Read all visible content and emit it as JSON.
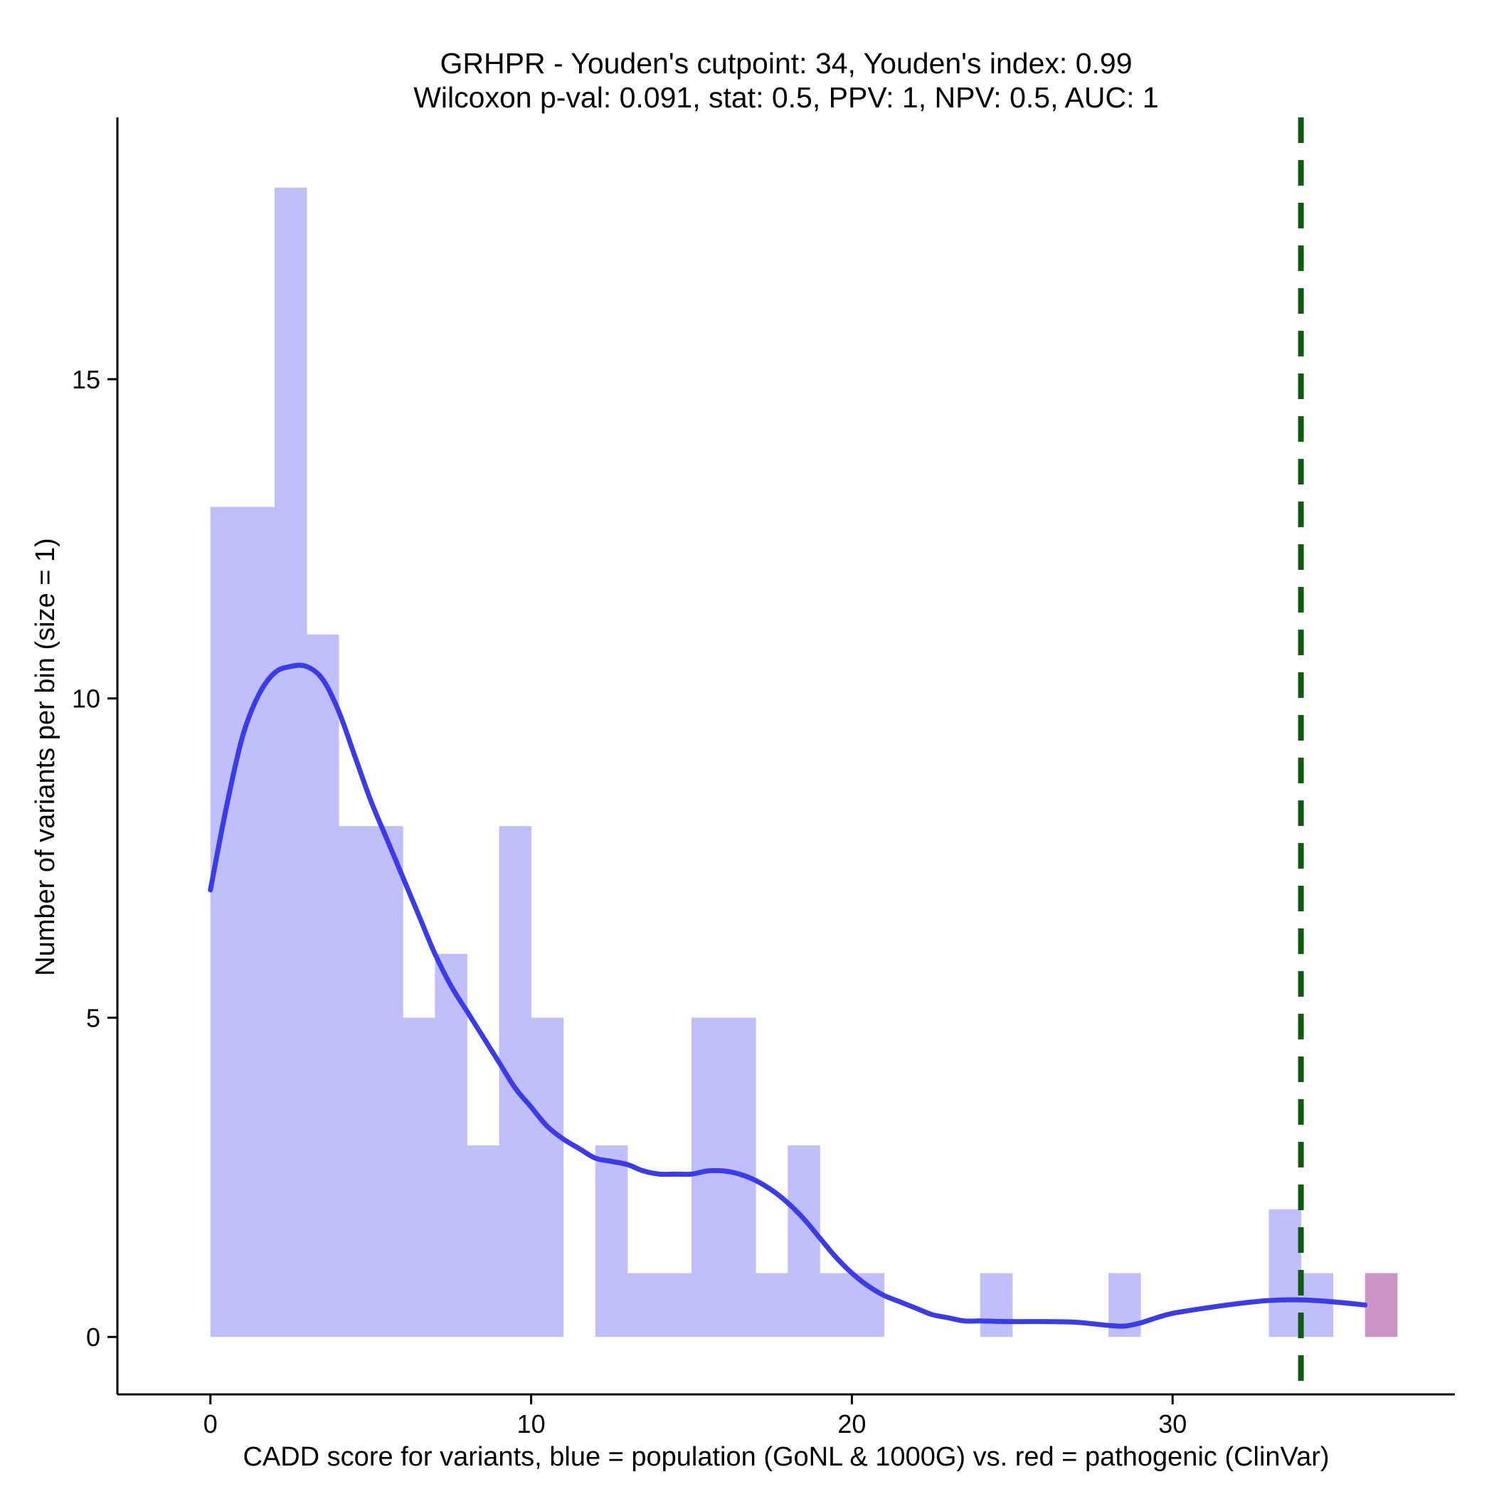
{
  "chart_data": {
    "type": "bar",
    "title_line1": "GRHPR - Youden's cutpoint: 34, Youden's index: 0.99",
    "title_line2": "Wilcoxon p-val: 0.091, stat: 0.5, PPV: 1, NPV: 0.5, AUC: 1",
    "xlabel": "CADD score for variants, blue = population (GoNL & 1000G) vs. red = pathogenic (ClinVar)",
    "ylabel": "Number of variants per bin (size = 1)",
    "bin_size": 1,
    "xlim": [
      -2.9,
      38.8
    ],
    "ylim": [
      -0.9,
      19.1
    ],
    "x_ticks": [
      0,
      10,
      20,
      30
    ],
    "y_ticks": [
      0,
      5,
      10,
      15
    ],
    "cutpoint": 34,
    "colors": {
      "population": "#bfbffc",
      "pathogenic": "#cc95c7",
      "density": "#3b3bee",
      "cutpoint": "#0e5a0e"
    },
    "series": [
      {
        "group": "population",
        "bins": [
          {
            "x0": 0,
            "count": 13
          },
          {
            "x0": 1,
            "count": 13
          },
          {
            "x0": 2,
            "count": 18
          },
          {
            "x0": 3,
            "count": 11
          },
          {
            "x0": 4,
            "count": 8
          },
          {
            "x0": 5,
            "count": 8
          },
          {
            "x0": 6,
            "count": 5
          },
          {
            "x0": 7,
            "count": 6
          },
          {
            "x0": 8,
            "count": 3
          },
          {
            "x0": 9,
            "count": 8
          },
          {
            "x0": 10,
            "count": 5
          },
          {
            "x0": 12,
            "count": 3
          },
          {
            "x0": 13,
            "count": 1
          },
          {
            "x0": 14,
            "count": 1
          },
          {
            "x0": 15,
            "count": 5
          },
          {
            "x0": 16,
            "count": 5
          },
          {
            "x0": 17,
            "count": 1
          },
          {
            "x0": 18,
            "count": 3
          },
          {
            "x0": 19,
            "count": 1
          },
          {
            "x0": 20,
            "count": 1
          },
          {
            "x0": 24,
            "count": 1
          },
          {
            "x0": 28,
            "count": 1
          },
          {
            "x0": 33,
            "count": 2
          },
          {
            "x0": 34,
            "count": 1
          }
        ]
      },
      {
        "group": "pathogenic",
        "bins": [
          {
            "x0": 36,
            "count": 1
          }
        ]
      }
    ],
    "density_curve": [
      [
        0,
        7.0
      ],
      [
        0.5,
        8.3
      ],
      [
        1.0,
        9.4
      ],
      [
        1.5,
        10.05
      ],
      [
        2.0,
        10.4
      ],
      [
        2.5,
        10.5
      ],
      [
        3.0,
        10.5
      ],
      [
        3.5,
        10.3
      ],
      [
        4.0,
        9.8
      ],
      [
        4.5,
        9.1
      ],
      [
        5.0,
        8.4
      ],
      [
        5.5,
        7.8
      ],
      [
        6.0,
        7.2
      ],
      [
        6.5,
        6.6
      ],
      [
        7.0,
        6.0
      ],
      [
        7.5,
        5.5
      ],
      [
        8.0,
        5.1
      ],
      [
        8.5,
        4.7
      ],
      [
        9.0,
        4.3
      ],
      [
        9.5,
        3.9
      ],
      [
        10.0,
        3.6
      ],
      [
        10.5,
        3.3
      ],
      [
        11.0,
        3.1
      ],
      [
        11.5,
        2.95
      ],
      [
        12.0,
        2.8
      ],
      [
        12.5,
        2.75
      ],
      [
        13.0,
        2.7
      ],
      [
        13.5,
        2.6
      ],
      [
        14.0,
        2.55
      ],
      [
        14.5,
        2.55
      ],
      [
        15.0,
        2.55
      ],
      [
        15.5,
        2.6
      ],
      [
        16.0,
        2.6
      ],
      [
        16.5,
        2.55
      ],
      [
        17.0,
        2.45
      ],
      [
        17.5,
        2.3
      ],
      [
        18.0,
        2.1
      ],
      [
        18.5,
        1.85
      ],
      [
        19.0,
        1.55
      ],
      [
        19.5,
        1.25
      ],
      [
        20.0,
        1.0
      ],
      [
        20.5,
        0.8
      ],
      [
        21.0,
        0.65
      ],
      [
        21.5,
        0.55
      ],
      [
        22.0,
        0.45
      ],
      [
        22.5,
        0.35
      ],
      [
        23.0,
        0.3
      ],
      [
        23.5,
        0.25
      ],
      [
        24.0,
        0.25
      ],
      [
        25.0,
        0.24
      ],
      [
        26.0,
        0.24
      ],
      [
        27.0,
        0.23
      ],
      [
        28.0,
        0.18
      ],
      [
        28.5,
        0.17
      ],
      [
        29.0,
        0.22
      ],
      [
        29.5,
        0.3
      ],
      [
        30.0,
        0.37
      ],
      [
        31.0,
        0.45
      ],
      [
        32.0,
        0.52
      ],
      [
        33.0,
        0.57
      ],
      [
        34.0,
        0.58
      ],
      [
        35.0,
        0.55
      ],
      [
        36.0,
        0.5
      ]
    ]
  }
}
